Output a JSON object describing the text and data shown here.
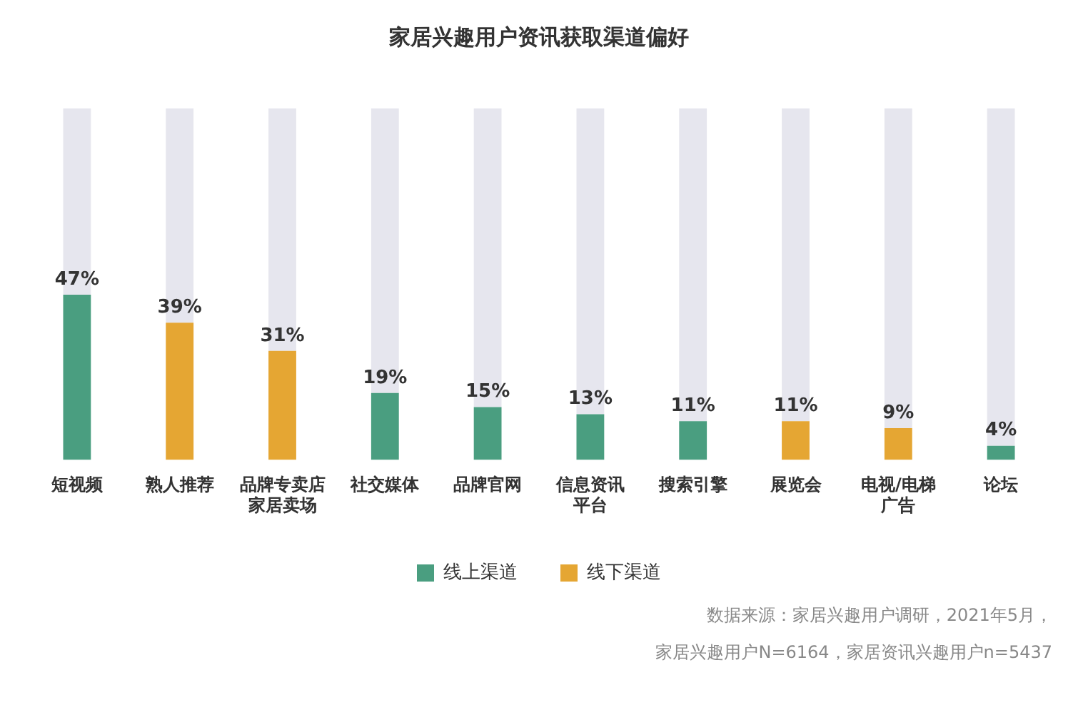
{
  "chart_data": {
    "type": "bar",
    "title": "家居兴趣用户资讯获取渠道偏好",
    "categories": [
      "短视频",
      "熟人推荐",
      "品牌专卖店家居卖场",
      "社交媒体",
      "品牌官网",
      "信息资讯平台",
      "搜索引擎",
      "展览会",
      "电视/电梯广告",
      "论坛"
    ],
    "stacked": true,
    "series": [
      {
        "name": "线上渠道",
        "color": "#4a9e80",
        "values": [
          47,
          null,
          null,
          19,
          15,
          13,
          11,
          null,
          null,
          4
        ],
        "value_labels": [
          "47%",
          null,
          null,
          "19%",
          "15%",
          "13%",
          "11%",
          null,
          null,
          "4%"
        ]
      },
      {
        "name": "线下渠道",
        "color": "#e5a633",
        "values": [
          null,
          39,
          31,
          null,
          null,
          null,
          null,
          11,
          9,
          null
        ],
        "value_labels": [
          null,
          "39%",
          "31%",
          null,
          null,
          null,
          null,
          "11%",
          "9%",
          null
        ]
      },
      {
        "color": "#e6e6ee",
        "values": [
          53,
          61,
          69,
          81,
          85,
          87,
          89,
          89,
          91,
          96
        ]
      }
    ],
    "ylim": [
      0,
      100
    ],
    "tick_labels": "x",
    "legend": "bottom",
    "annotations": [
      "数据来源：家居兴趣用户调研，2021年5月，",
      "家居兴趣用户N=6164，家居资讯兴趣用户n=5437"
    ]
  }
}
